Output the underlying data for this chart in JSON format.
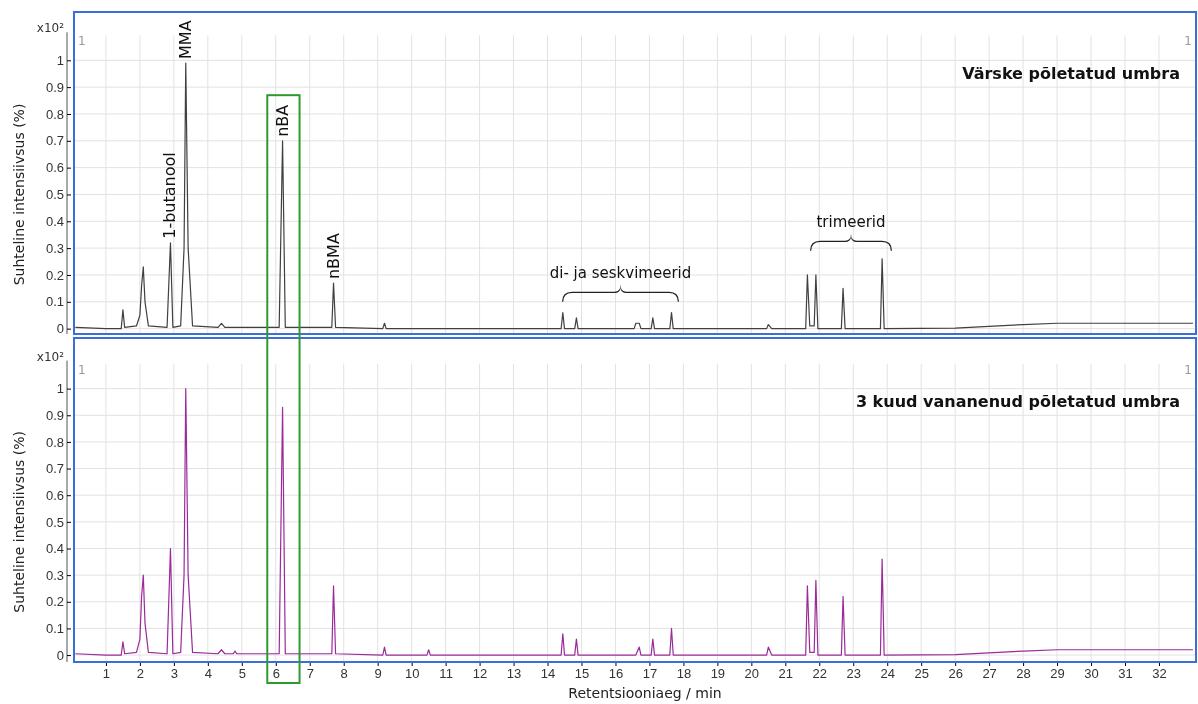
{
  "chart_data": [
    {
      "type": "line",
      "title": "Värske põletatud umbra",
      "ylabel": "Suhteline intensiivsus (%)",
      "xlim": [
        0.06,
        33.09
      ],
      "ylim": [
        -0.02,
        1.18
      ],
      "xticks": [
        1,
        2,
        3,
        4,
        5,
        6,
        7,
        8,
        9,
        10,
        11,
        12,
        13,
        14,
        15,
        16,
        17,
        18,
        19,
        20,
        21,
        22,
        23,
        24,
        25,
        26,
        27,
        28,
        29,
        30,
        31,
        32
      ],
      "yticks": [
        0,
        0.1,
        0.2,
        0.3,
        0.4,
        0.5,
        0.6,
        0.7,
        0.8,
        0.9,
        1
      ],
      "grid": true,
      "tick_labels": "y",
      "marker": "none",
      "line_style": "solid",
      "series": [
        {
          "color": "#404040",
          "x": [
            0.1,
            1.0,
            1.45,
            1.5,
            1.55,
            1.9,
            2.0,
            2.05,
            2.1,
            2.15,
            2.25,
            2.8,
            2.9,
            2.97,
            3.2,
            3.3,
            3.35,
            3.42,
            3.55,
            4.3,
            4.4,
            4.5,
            6.1,
            6.2,
            6.28,
            7.65,
            7.7,
            7.76,
            9.15,
            9.2,
            9.25,
            14.4,
            14.45,
            14.5,
            14.8,
            14.85,
            14.9,
            16.55,
            16.6,
            16.7,
            16.75,
            17.05,
            17.1,
            17.15,
            17.6,
            17.65,
            17.7,
            20.45,
            20.5,
            20.6,
            21.6,
            21.65,
            21.72,
            21.85,
            21.9,
            21.96,
            22.65,
            22.7,
            22.76,
            23.8,
            23.85,
            23.91,
            26,
            28,
            29,
            33
          ],
          "values": [
            0.005,
            0,
            0,
            0.07,
            0.005,
            0.01,
            0.05,
            0.16,
            0.23,
            0.1,
            0.01,
            0.005,
            0.32,
            0.005,
            0.01,
            0.3,
            0.99,
            0.3,
            0.01,
            0.005,
            0.02,
            0.005,
            0.005,
            0.7,
            0.005,
            0.005,
            0.17,
            0.005,
            0,
            0.02,
            0,
            0,
            0.06,
            0,
            0,
            0.04,
            0,
            0,
            0.02,
            0.02,
            0,
            0,
            0.04,
            0,
            0,
            0.06,
            0,
            0,
            0.015,
            0,
            0,
            0.2,
            0.01,
            0.01,
            0.2,
            0,
            0,
            0.15,
            0,
            0,
            0.26,
            0,
            0.002,
            0.015,
            0.02,
            0.02
          ]
        }
      ],
      "annotations": [
        "x10²",
        "1",
        "1",
        {
          "text": "1-butanool",
          "x": 2.9,
          "y": 0.32
        },
        {
          "text": "MMA",
          "x": 3.35,
          "y": 0.99
        },
        {
          "text": "nBA",
          "x": 6.2,
          "y": 0.7
        },
        {
          "text": "nBMA",
          "x": 7.7,
          "y": 0.17
        },
        "di- ja seskvimeerid",
        "trimeerid"
      ]
    },
    {
      "type": "line",
      "title": "3 kuud vananenud põletatud umbra",
      "xlabel": "Retentsiooniaeg / min",
      "ylabel": "Suhteline intensiivsus (%)",
      "xlim": [
        0.06,
        33.09
      ],
      "ylim": [
        -0.026,
        1.19
      ],
      "xticks": [
        1,
        2,
        3,
        4,
        5,
        6,
        7,
        8,
        9,
        10,
        11,
        12,
        13,
        14,
        15,
        16,
        17,
        18,
        19,
        20,
        21,
        22,
        23,
        24,
        25,
        26,
        27,
        28,
        29,
        30,
        31,
        32
      ],
      "yticks": [
        0,
        0.1,
        0.2,
        0.3,
        0.4,
        0.5,
        0.6,
        0.7,
        0.8,
        0.9,
        1
      ],
      "grid": true,
      "marker": "none",
      "line_style": "solid",
      "series": [
        {
          "color": "#9b2a9b",
          "x": [
            0.1,
            1.0,
            1.45,
            1.5,
            1.55,
            1.9,
            2.0,
            2.05,
            2.1,
            2.15,
            2.25,
            2.8,
            2.9,
            2.97,
            3.2,
            3.3,
            3.35,
            3.42,
            3.55,
            4.3,
            4.4,
            4.5,
            4.75,
            4.8,
            4.85,
            6.1,
            6.2,
            6.28,
            7.65,
            7.7,
            7.76,
            9.15,
            9.2,
            9.25,
            10.45,
            10.5,
            10.55,
            14.4,
            14.45,
            14.5,
            14.8,
            14.85,
            14.9,
            16.6,
            16.7,
            16.75,
            17.05,
            17.1,
            17.15,
            17.6,
            17.65,
            17.7,
            20.45,
            20.5,
            20.6,
            21.6,
            21.65,
            21.72,
            21.85,
            21.9,
            21.96,
            22.65,
            22.7,
            22.76,
            23.8,
            23.85,
            23.91,
            26,
            28,
            29,
            33
          ],
          "values": [
            0.005,
            0,
            0,
            0.05,
            0.005,
            0.01,
            0.06,
            0.22,
            0.3,
            0.12,
            0.01,
            0.005,
            0.4,
            0.005,
            0.01,
            0.3,
            1,
            0.3,
            0.01,
            0.005,
            0.02,
            0.005,
            0.005,
            0.015,
            0.005,
            0.005,
            0.93,
            0.005,
            0.005,
            0.26,
            0.005,
            0,
            0.03,
            0,
            0,
            0.02,
            0,
            0,
            0.08,
            0,
            0,
            0.06,
            0,
            0,
            0.03,
            0,
            0,
            0.06,
            0,
            0,
            0.1,
            0,
            0,
            0.03,
            0,
            0,
            0.26,
            0.01,
            0.01,
            0.28,
            0,
            0,
            0.22,
            0,
            0,
            0.36,
            0,
            0.002,
            0.015,
            0.02,
            0.02
          ]
        }
      ],
      "annotations": [
        "x10²",
        "1",
        "1"
      ]
    }
  ]
}
